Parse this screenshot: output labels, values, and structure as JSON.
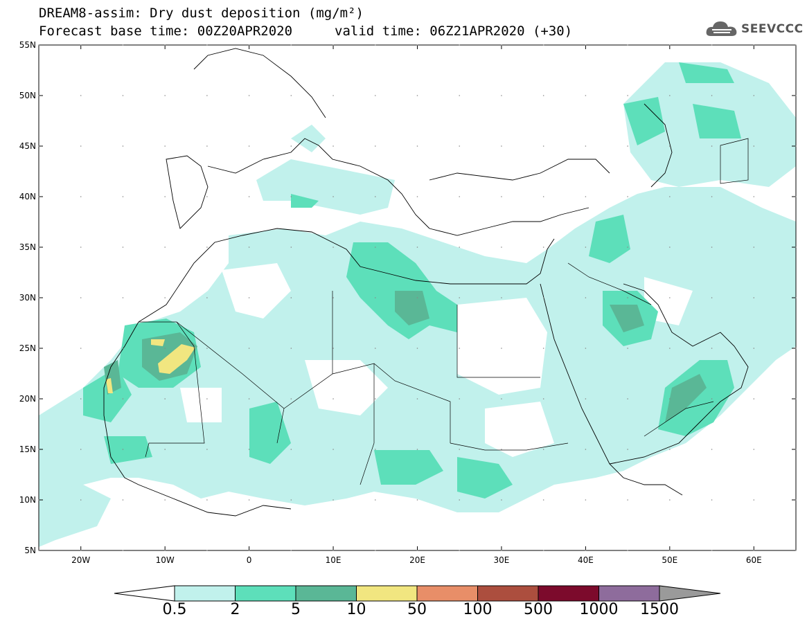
{
  "title": {
    "line1": "DREAM8-assim: Dry dust deposition (mg/m²)",
    "line2": "Forecast base time: 00Z20APR2020",
    "line2b": "valid time: 06Z21APR2020 (+30)"
  },
  "logo": {
    "text": "SEEVCCC",
    "icon": "cloud-icon"
  },
  "map": {
    "lon_range": [
      -25,
      65
    ],
    "lat_range": [
      5,
      55
    ],
    "lon_ticks": [
      {
        "v": -20,
        "label": "20W"
      },
      {
        "v": -10,
        "label": "10W"
      },
      {
        "v": 0,
        "label": "0"
      },
      {
        "v": 10,
        "label": "10E"
      },
      {
        "v": 20,
        "label": "20E"
      },
      {
        "v": 30,
        "label": "30E"
      },
      {
        "v": 40,
        "label": "40E"
      },
      {
        "v": 50,
        "label": "50E"
      },
      {
        "v": 60,
        "label": "60E"
      }
    ],
    "lat_ticks": [
      {
        "v": 55,
        "label": "55N"
      },
      {
        "v": 50,
        "label": "50N"
      },
      {
        "v": 45,
        "label": "45N"
      },
      {
        "v": 40,
        "label": "40N"
      },
      {
        "v": 35,
        "label": "35N"
      },
      {
        "v": 30,
        "label": "30N"
      },
      {
        "v": 25,
        "label": "25N"
      },
      {
        "v": 20,
        "label": "20N"
      },
      {
        "v": 15,
        "label": "15N"
      },
      {
        "v": 10,
        "label": "10N"
      },
      {
        "v": 5,
        "label": "5N"
      }
    ]
  },
  "colorbar": {
    "labels": [
      "0.5",
      "2",
      "5",
      "10",
      "50",
      "100",
      "500",
      "1000",
      "1500"
    ],
    "colors": [
      "#c1f1ec",
      "#5ddfba",
      "#5ab796",
      "#f1e680",
      "#e88e68",
      "#ac4e3e",
      "#7c0a2c",
      "#8e6c9c"
    ],
    "under_color": "#ffffff",
    "over_color": "#9a9a9a"
  },
  "palette": {
    "c05": "#c1f1ec",
    "c2": "#5ddfba",
    "c5": "#5ab796",
    "c10": "#f1e680"
  }
}
